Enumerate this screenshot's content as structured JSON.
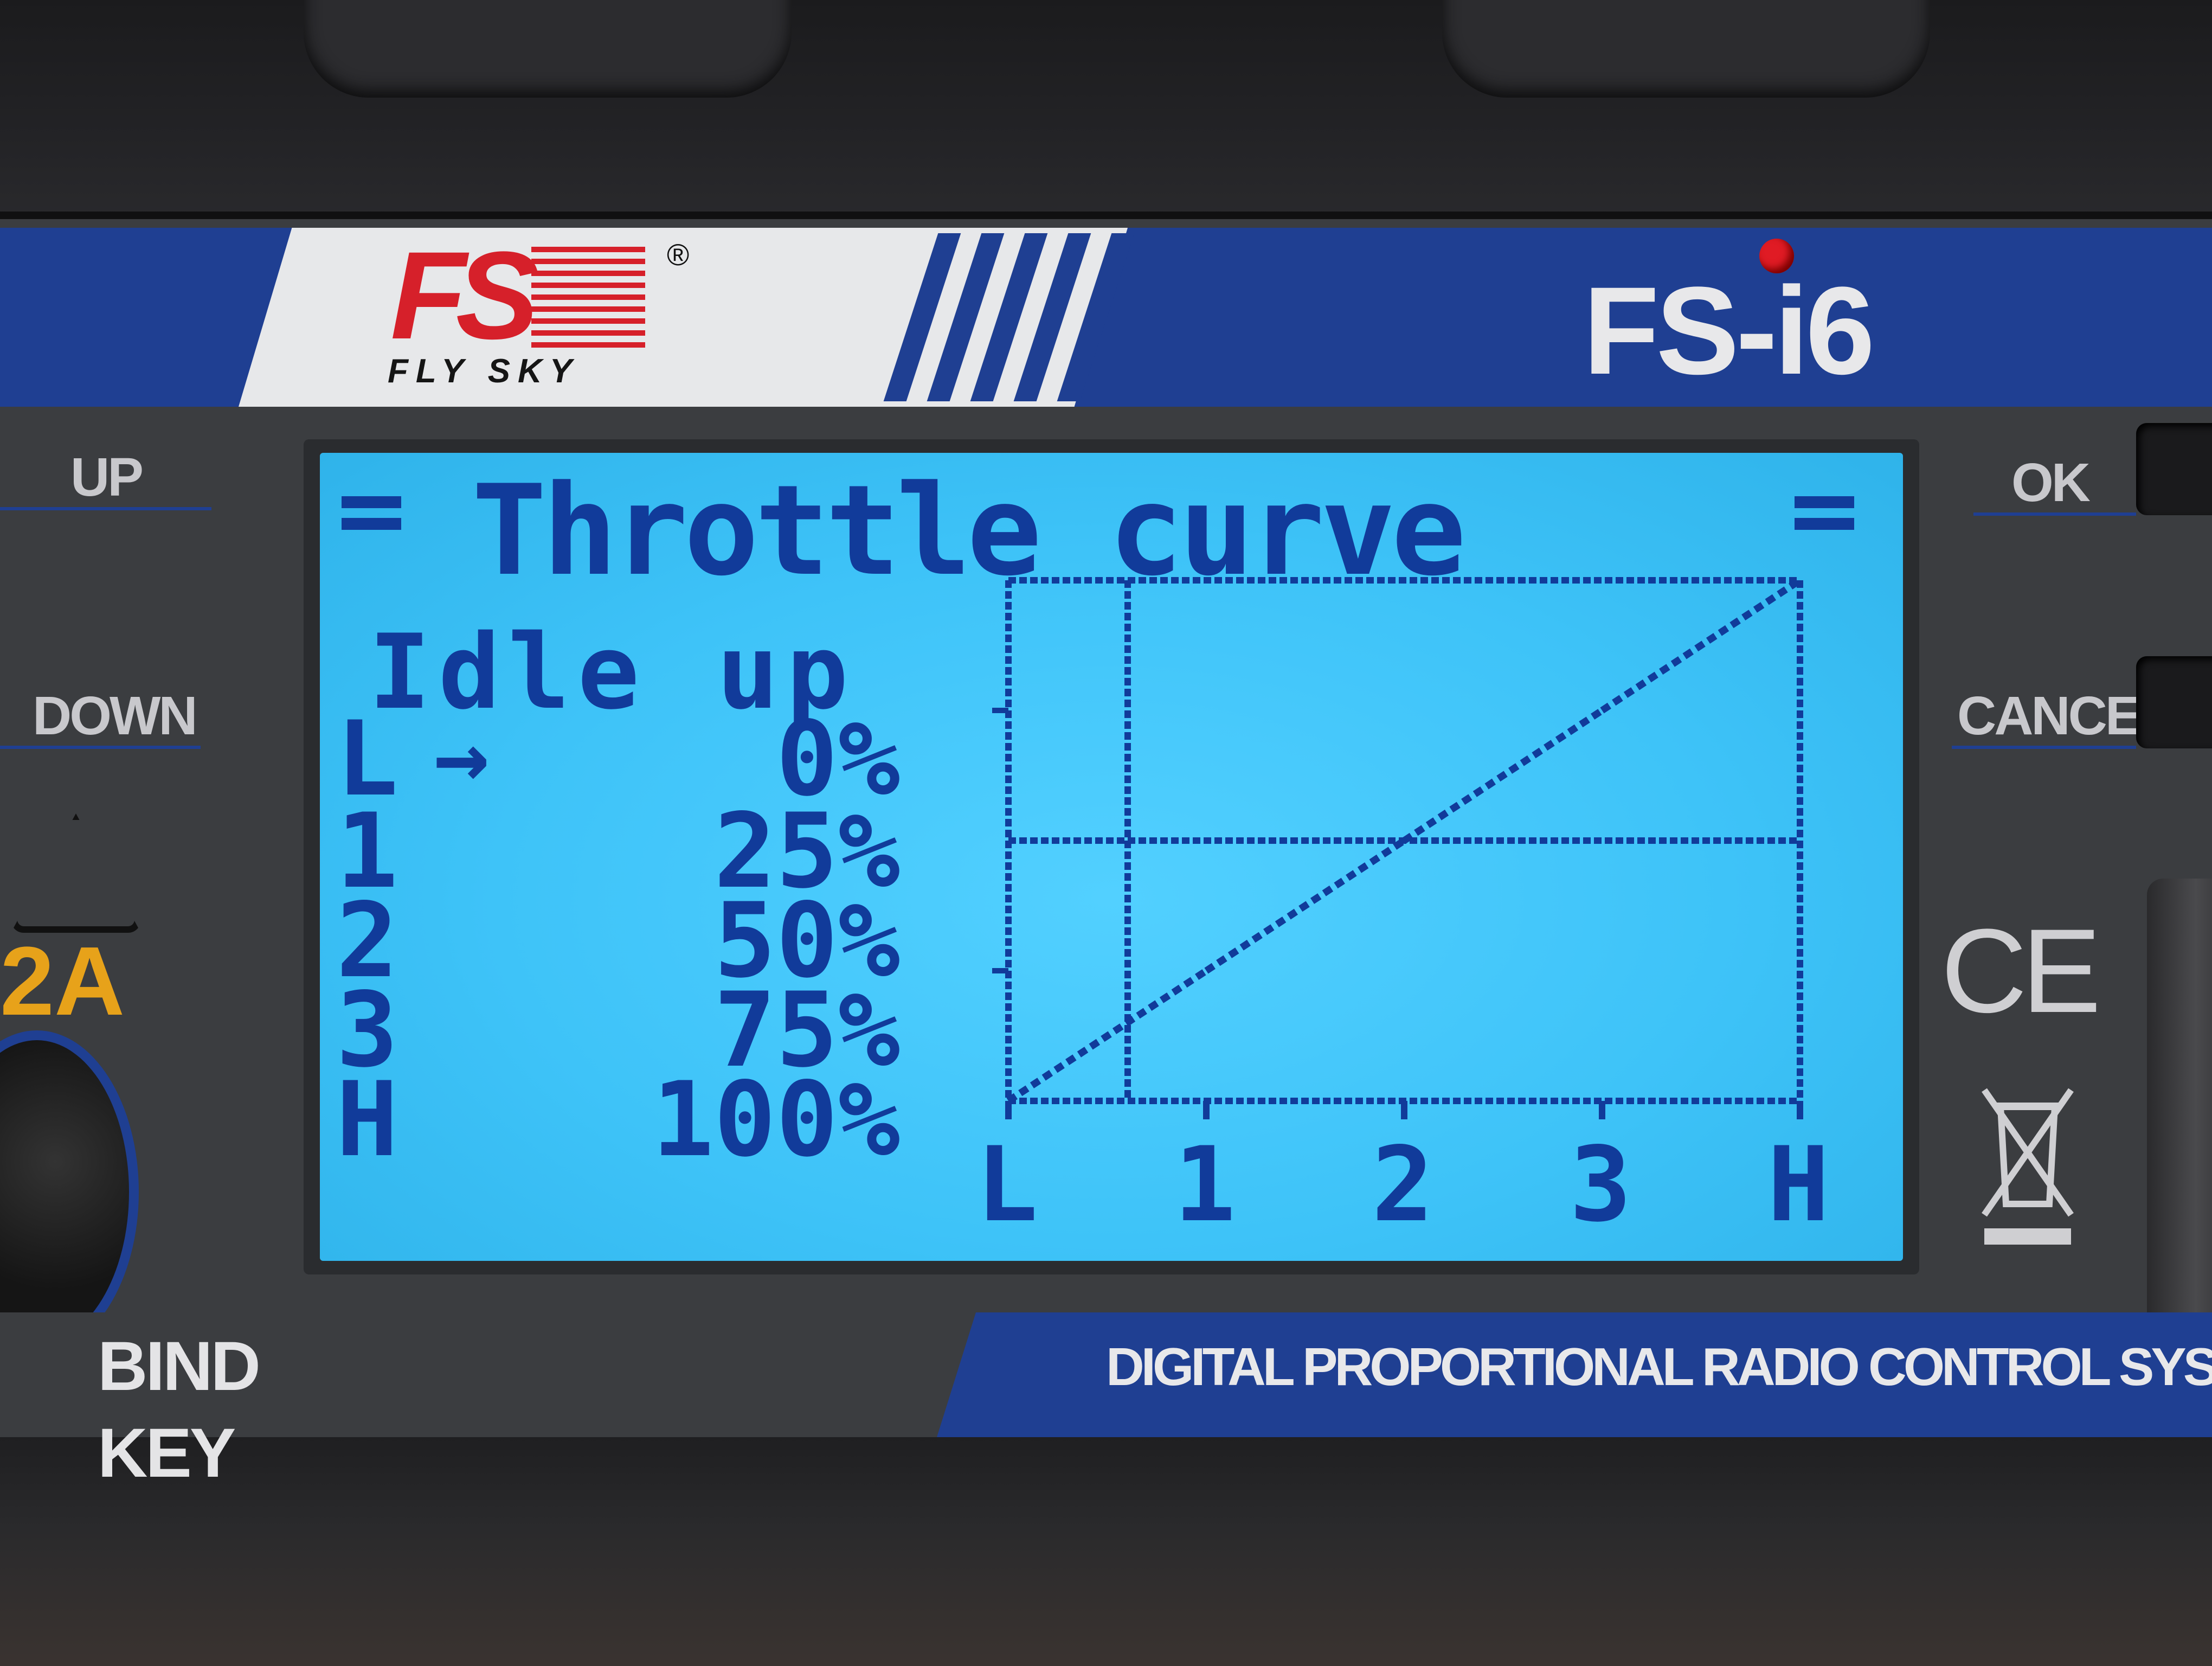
{
  "device": {
    "brand": "FLY SKY",
    "brand_mark": "FS",
    "registered": "®",
    "model": "FS-i6",
    "tagline": "DIGITAL PROPORTIONAL RADIO CONTROL SYSTEM",
    "bind_label": "BIND KEY",
    "accent_color": "#1f3f92",
    "lcd_color": "#3ec3f8",
    "lcd_ink": "#113b9a"
  },
  "buttons": {
    "up": "UP",
    "down": "DOWN",
    "ok": "OK",
    "cancel": "CANCEL"
  },
  "markings": {
    "rating": "2A",
    "ce": "CE",
    "rcm_icon": "rcm-compliance-icon",
    "weee_icon": "crossed-bin-icon"
  },
  "screen": {
    "title": "Throttle curve",
    "mode": "Idle up",
    "selection_arrow": "→",
    "points": [
      {
        "label": "L",
        "value": "0%"
      },
      {
        "label": "1",
        "value": "25%"
      },
      {
        "label": "2",
        "value": "50%"
      },
      {
        "label": "3",
        "value": "75%"
      },
      {
        "label": "H",
        "value": "100%"
      }
    ],
    "axis": [
      "L",
      "1",
      "2",
      "3",
      "H"
    ]
  },
  "chart_data": {
    "type": "line",
    "categories": [
      "L",
      "1",
      "2",
      "3",
      "H"
    ],
    "values": [
      0,
      25,
      50,
      75,
      100
    ],
    "ylim": [
      0,
      100
    ]
  }
}
